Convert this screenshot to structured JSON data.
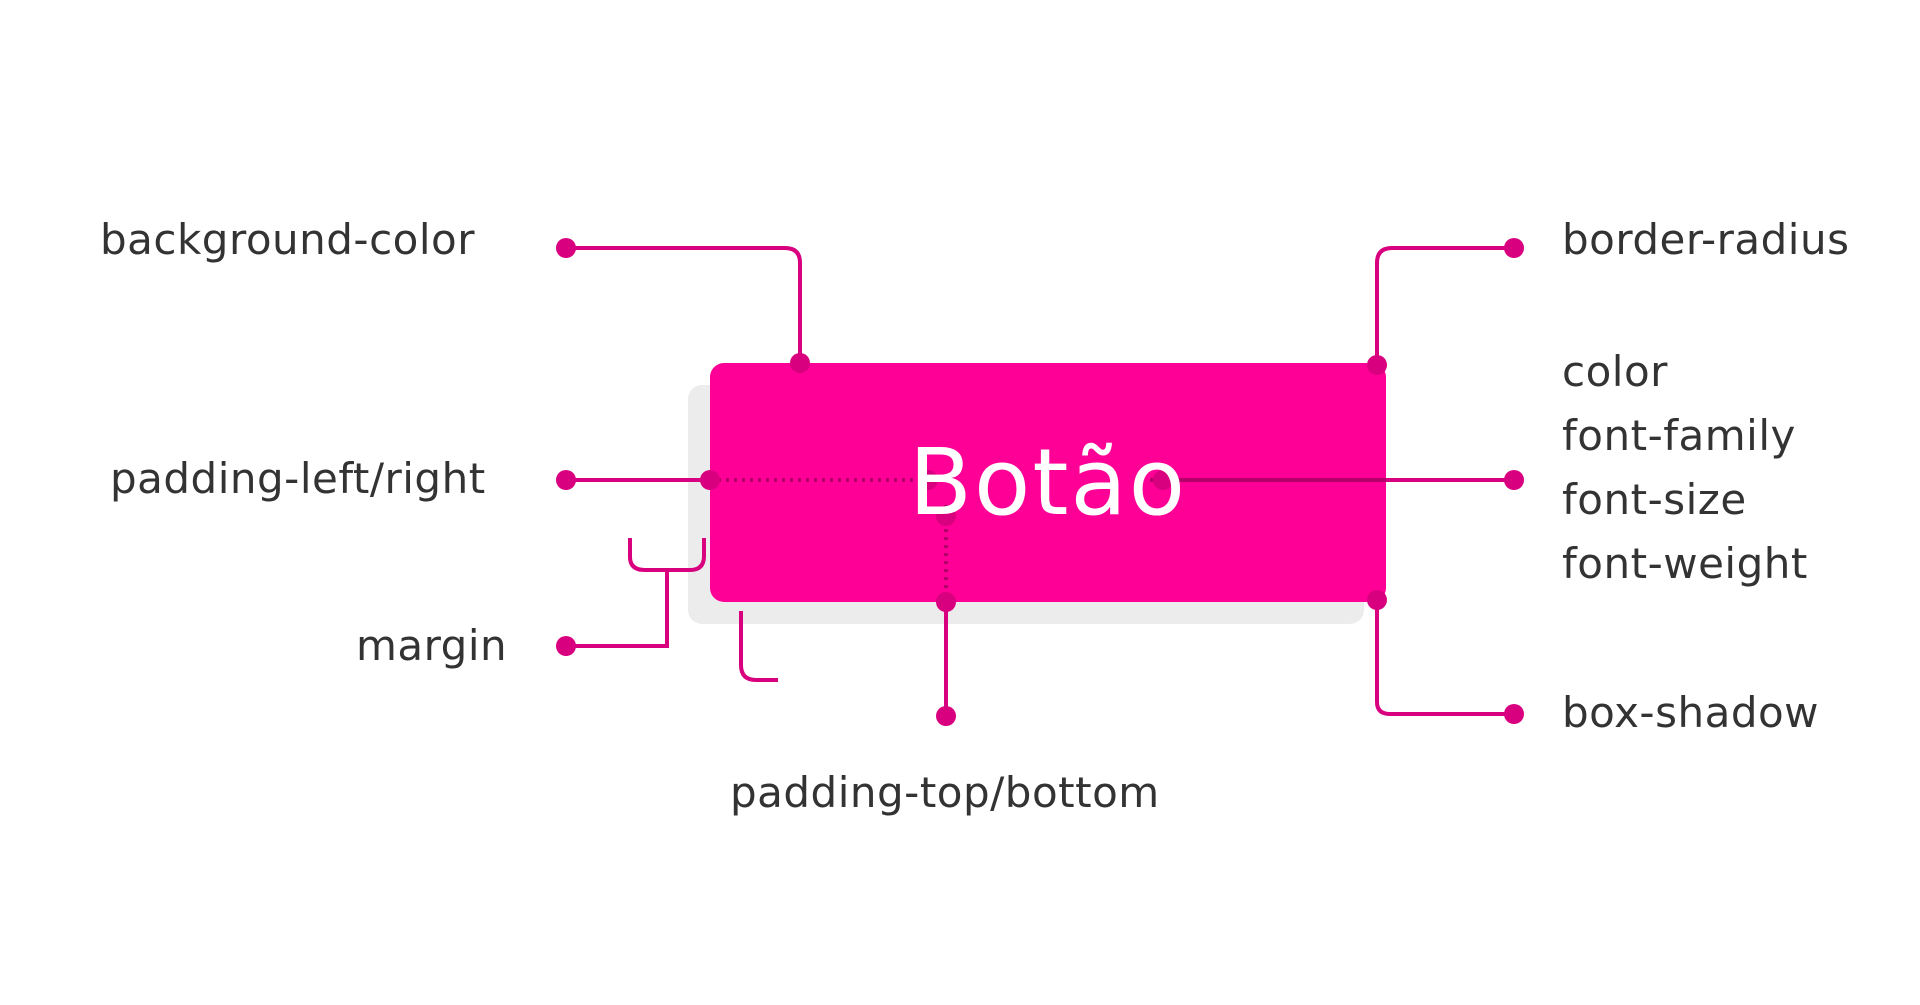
{
  "button": {
    "label": "Botão",
    "background": "#ff0096",
    "text_color": "#ffffff",
    "shadow_color": "#ececec"
  },
  "callout_color": "#d9007f",
  "labels": {
    "background_color": "background-color",
    "padding_left_right": "padding-left/right",
    "margin": "margin",
    "padding_top_bottom": "padding-top/bottom",
    "border_radius": "border-radius",
    "color": "color",
    "font_family": "font-family",
    "font_size": "font-size",
    "font_weight": "font-weight",
    "box_shadow": "box-shadow"
  }
}
